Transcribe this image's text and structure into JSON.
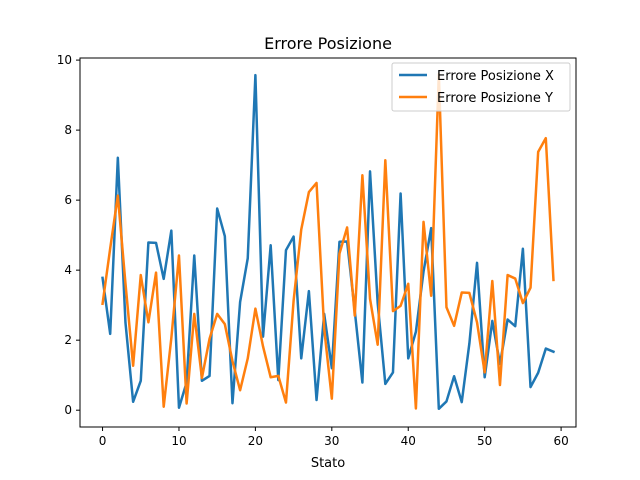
{
  "chart_data": {
    "type": "line",
    "title": "Errore Posizione",
    "xlabel": "Stato",
    "ylabel": "",
    "xlim": [
      -2.95,
      61.95
    ],
    "ylim": [
      -0.48,
      10.06
    ],
    "xticks": [
      0,
      10,
      20,
      30,
      40,
      50,
      60
    ],
    "yticks": [
      0,
      2,
      4,
      6,
      8,
      10
    ],
    "grid": false,
    "legend_position": "top-right",
    "x": [
      0,
      1,
      2,
      3,
      4,
      5,
      6,
      7,
      8,
      9,
      10,
      11,
      12,
      13,
      14,
      15,
      16,
      17,
      18,
      19,
      20,
      21,
      22,
      23,
      24,
      25,
      26,
      27,
      28,
      29,
      30,
      31,
      32,
      33,
      34,
      35,
      36,
      37,
      38,
      39,
      40,
      41,
      42,
      43,
      44,
      45,
      46,
      47,
      48,
      49,
      50,
      51,
      52,
      53,
      54,
      55,
      56,
      57,
      58,
      59
    ],
    "series": [
      {
        "name": "Errore Posizione X",
        "color": "#1f77b4",
        "values": [
          3.78,
          2.18,
          7.21,
          2.5,
          0.24,
          0.84,
          4.79,
          4.78,
          3.75,
          5.13,
          0.07,
          0.79,
          4.42,
          0.84,
          0.98,
          5.76,
          4.97,
          0.2,
          3.09,
          4.34,
          9.57,
          2.1,
          4.71,
          0.86,
          4.57,
          4.96,
          1.48,
          3.4,
          0.29,
          2.75,
          1.2,
          4.81,
          4.82,
          2.84,
          0.79,
          6.82,
          3.06,
          0.75,
          1.08,
          6.19,
          1.48,
          2.24,
          3.96,
          5.2,
          0.04,
          0.25,
          0.97,
          0.23,
          1.91,
          4.21,
          0.94,
          2.55,
          1.32,
          2.59,
          2.4,
          4.61,
          0.66,
          1.07,
          1.76,
          1.67
        ]
      },
      {
        "name": "Errore Posizione Y",
        "color": "#ff7f0e",
        "values": [
          3.04,
          4.62,
          6.13,
          3.62,
          1.27,
          3.86,
          2.51,
          3.93,
          0.1,
          2.06,
          4.42,
          0.19,
          2.75,
          0.92,
          2.04,
          2.75,
          2.46,
          1.4,
          0.57,
          1.48,
          2.9,
          1.82,
          0.94,
          0.98,
          0.22,
          3.13,
          5.16,
          6.23,
          6.49,
          2.33,
          0.33,
          4.47,
          5.22,
          2.7,
          6.71,
          3.18,
          1.87,
          7.14,
          2.83,
          2.98,
          3.61,
          0.05,
          5.38,
          3.27,
          9.6,
          2.94,
          2.41,
          3.36,
          3.35,
          2.51,
          1.08,
          3.69,
          0.72,
          3.86,
          3.76,
          3.06,
          3.5,
          7.38,
          7.77,
          3.72
        ]
      }
    ]
  }
}
